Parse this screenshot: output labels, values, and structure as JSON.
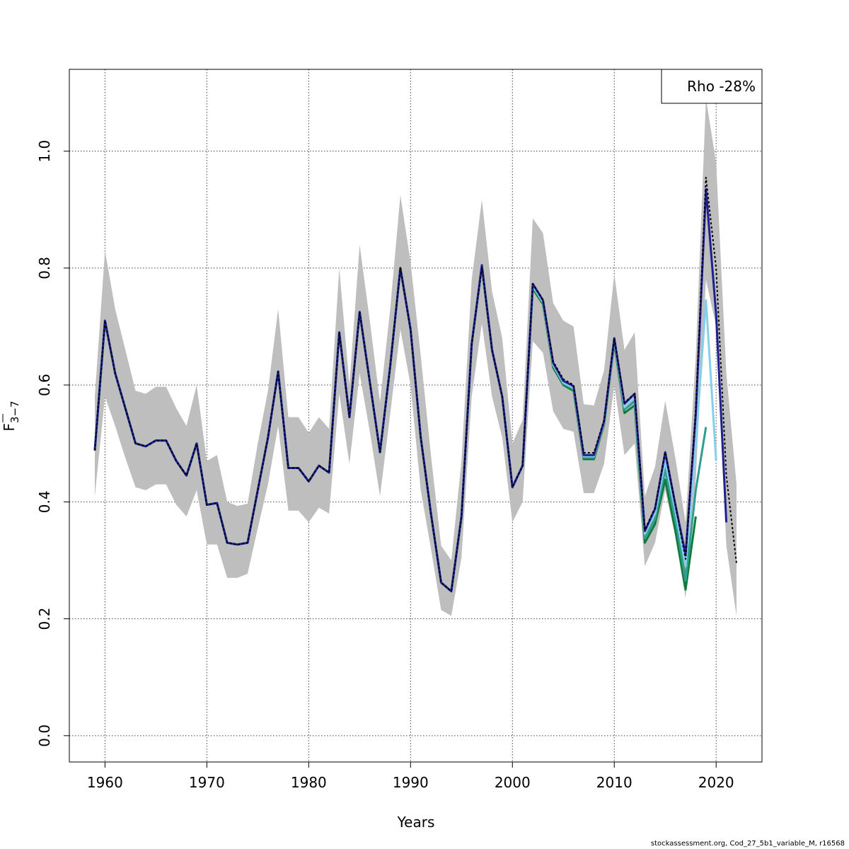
{
  "chart_data": {
    "type": "line",
    "xlabel": "Years",
    "ylabel_main": "F",
    "ylabel_sub": "3−7",
    "xlim": [
      1956.5,
      2024.5
    ],
    "ylim": [
      -0.045,
      1.14
    ],
    "xticks": [
      1960,
      1970,
      1980,
      1990,
      2000,
      2010,
      2020
    ],
    "yticks": [
      0.0,
      0.2,
      0.4,
      0.6,
      0.8,
      1.0
    ],
    "ytick_labels": [
      "0.0",
      "0.2",
      "0.4",
      "0.6",
      "0.8",
      "1.0"
    ],
    "grid": true,
    "legend": {
      "placement": "top-right",
      "text": "Rho -28%"
    },
    "confidence_band": {
      "color": "#bebebe",
      "x": [
        1959,
        1960,
        1961,
        1962,
        1963,
        1964,
        1965,
        1966,
        1967,
        1968,
        1969,
        1970,
        1971,
        1972,
        1973,
        1974,
        1975,
        1976,
        1977,
        1978,
        1979,
        1980,
        1981,
        1982,
        1983,
        1984,
        1985,
        1986,
        1987,
        1988,
        1989,
        1990,
        1991,
        1992,
        1993,
        1994,
        1995,
        1996,
        1997,
        1998,
        1999,
        2000,
        2001,
        2002,
        2003,
        2004,
        2005,
        2006,
        2007,
        2008,
        2009,
        2010,
        2011,
        2012,
        2013,
        2014,
        2015,
        2016,
        2017,
        2018,
        2019,
        2020,
        2021,
        2022
      ],
      "upper": [
        0.58,
        0.83,
        0.73,
        0.66,
        0.59,
        0.585,
        0.597,
        0.597,
        0.56,
        0.53,
        0.6,
        0.47,
        0.48,
        0.4,
        0.393,
        0.397,
        0.5,
        0.59,
        0.73,
        0.545,
        0.545,
        0.518,
        0.545,
        0.525,
        0.8,
        0.6,
        0.84,
        0.71,
        0.57,
        0.73,
        0.925,
        0.81,
        0.65,
        0.48,
        0.325,
        0.3,
        0.47,
        0.78,
        0.917,
        0.76,
        0.68,
        0.5,
        0.54,
        0.885,
        0.86,
        0.74,
        0.71,
        0.7,
        0.567,
        0.565,
        0.625,
        0.79,
        0.66,
        0.69,
        0.41,
        0.46,
        0.573,
        0.475,
        0.365,
        0.65,
        1.09,
        0.98,
        0.62,
        0.43
      ],
      "lower": [
        0.41,
        0.58,
        0.53,
        0.475,
        0.425,
        0.42,
        0.43,
        0.43,
        0.395,
        0.375,
        0.42,
        0.327,
        0.327,
        0.27,
        0.27,
        0.277,
        0.355,
        0.43,
        0.53,
        0.385,
        0.385,
        0.365,
        0.39,
        0.38,
        0.585,
        0.465,
        0.62,
        0.52,
        0.41,
        0.55,
        0.695,
        0.6,
        0.42,
        0.32,
        0.215,
        0.205,
        0.305,
        0.58,
        0.705,
        0.58,
        0.51,
        0.365,
        0.4,
        0.675,
        0.655,
        0.555,
        0.525,
        0.52,
        0.415,
        0.415,
        0.465,
        0.6,
        0.48,
        0.5,
        0.29,
        0.33,
        0.42,
        0.34,
        0.235,
        0.44,
        0.78,
        0.7,
        0.325,
        0.205
      ]
    },
    "series": [
      {
        "color": "#000000",
        "dashed": true,
        "x": [
          1959,
          1960,
          1961,
          1962,
          1963,
          1964,
          1965,
          1966,
          1967,
          1968,
          1969,
          1970,
          1971,
          1972,
          1973,
          1974,
          1975,
          1976,
          1977,
          1978,
          1979,
          1980,
          1981,
          1982,
          1983,
          1984,
          1985,
          1986,
          1987,
          1988,
          1989,
          1990,
          1991,
          1992,
          1993,
          1994,
          1995,
          1996,
          1997,
          1998,
          1999,
          2000,
          2001,
          2002,
          2003,
          2004,
          2005,
          2006,
          2007,
          2008,
          2009,
          2010,
          2011,
          2012,
          2013,
          2014,
          2015,
          2016,
          2017,
          2018,
          2019,
          2020,
          2021,
          2022
        ],
        "y": [
          0.488,
          0.71,
          0.62,
          0.56,
          0.5,
          0.495,
          0.505,
          0.505,
          0.47,
          0.445,
          0.5,
          0.395,
          0.398,
          0.33,
          0.327,
          0.33,
          0.42,
          0.51,
          0.623,
          0.458,
          0.458,
          0.435,
          0.462,
          0.45,
          0.69,
          0.545,
          0.725,
          0.605,
          0.485,
          0.632,
          0.8,
          0.695,
          0.51,
          0.38,
          0.262,
          0.247,
          0.375,
          0.67,
          0.8,
          0.66,
          0.58,
          0.425,
          0.462,
          0.773,
          0.745,
          0.64,
          0.61,
          0.6,
          0.484,
          0.484,
          0.54,
          0.68,
          0.57,
          0.585,
          0.352,
          0.39,
          0.485,
          0.395,
          0.302,
          0.56,
          0.955,
          0.8,
          0.445,
          0.295
        ]
      },
      {
        "color": "#1f1f8f",
        "dashed": false,
        "x": [
          1959,
          1960,
          1961,
          1962,
          1963,
          1964,
          1965,
          1966,
          1967,
          1968,
          1969,
          1970,
          1971,
          1972,
          1973,
          1974,
          1975,
          1976,
          1977,
          1978,
          1979,
          1980,
          1981,
          1982,
          1983,
          1984,
          1985,
          1986,
          1987,
          1988,
          1989,
          1990,
          1991,
          1992,
          1993,
          1994,
          1995,
          1996,
          1997,
          1998,
          1999,
          2000,
          2001,
          2002,
          2003,
          2004,
          2005,
          2006,
          2007,
          2008,
          2009,
          2010,
          2011,
          2012,
          2013,
          2014,
          2015,
          2016,
          2017,
          2018,
          2019,
          2020,
          2021
        ],
        "y": [
          0.488,
          0.71,
          0.62,
          0.56,
          0.5,
          0.495,
          0.505,
          0.505,
          0.47,
          0.445,
          0.5,
          0.395,
          0.398,
          0.33,
          0.327,
          0.33,
          0.42,
          0.51,
          0.623,
          0.458,
          0.458,
          0.435,
          0.462,
          0.45,
          0.69,
          0.545,
          0.725,
          0.605,
          0.485,
          0.632,
          0.8,
          0.695,
          0.51,
          0.38,
          0.262,
          0.247,
          0.375,
          0.67,
          0.805,
          0.66,
          0.58,
          0.425,
          0.462,
          0.773,
          0.745,
          0.638,
          0.607,
          0.598,
          0.48,
          0.48,
          0.538,
          0.68,
          0.568,
          0.585,
          0.35,
          0.388,
          0.485,
          0.395,
          0.31,
          0.55,
          0.935,
          0.72,
          0.365
        ]
      },
      {
        "color": "#87ceeb",
        "dashed": false,
        "x": [
          1959,
          1960,
          1961,
          1962,
          1963,
          1964,
          1965,
          1966,
          1967,
          1968,
          1969,
          1970,
          1971,
          1972,
          1973,
          1974,
          1975,
          1976,
          1977,
          1978,
          1979,
          1980,
          1981,
          1982,
          1983,
          1984,
          1985,
          1986,
          1987,
          1988,
          1989,
          1990,
          1991,
          1992,
          1993,
          1994,
          1995,
          1996,
          1997,
          1998,
          1999,
          2000,
          2001,
          2002,
          2003,
          2004,
          2005,
          2006,
          2007,
          2008,
          2009,
          2010,
          2011,
          2012,
          2013,
          2014,
          2015,
          2016,
          2017,
          2018,
          2019,
          2020
        ],
        "y": [
          0.488,
          0.71,
          0.62,
          0.56,
          0.5,
          0.495,
          0.505,
          0.505,
          0.47,
          0.445,
          0.5,
          0.395,
          0.398,
          0.33,
          0.327,
          0.33,
          0.42,
          0.51,
          0.623,
          0.458,
          0.458,
          0.435,
          0.462,
          0.45,
          0.69,
          0.545,
          0.725,
          0.605,
          0.485,
          0.632,
          0.8,
          0.695,
          0.51,
          0.38,
          0.262,
          0.247,
          0.375,
          0.67,
          0.8,
          0.66,
          0.58,
          0.425,
          0.462,
          0.77,
          0.742,
          0.635,
          0.604,
          0.595,
          0.478,
          0.478,
          0.536,
          0.678,
          0.562,
          0.578,
          0.345,
          0.38,
          0.47,
          0.385,
          0.29,
          0.5,
          0.745,
          0.47
        ]
      },
      {
        "color": "#2e9e8e",
        "dashed": false,
        "x": [
          1959,
          1960,
          1961,
          1962,
          1963,
          1964,
          1965,
          1966,
          1967,
          1968,
          1969,
          1970,
          1971,
          1972,
          1973,
          1974,
          1975,
          1976,
          1977,
          1978,
          1979,
          1980,
          1981,
          1982,
          1983,
          1984,
          1985,
          1986,
          1987,
          1988,
          1989,
          1990,
          1991,
          1992,
          1993,
          1994,
          1995,
          1996,
          1997,
          1998,
          1999,
          2000,
          2001,
          2002,
          2003,
          2004,
          2005,
          2006,
          2007,
          2008,
          2009,
          2010,
          2011,
          2012,
          2013,
          2014,
          2015,
          2016,
          2017,
          2018,
          2019
        ],
        "y": [
          0.488,
          0.71,
          0.62,
          0.56,
          0.5,
          0.495,
          0.505,
          0.505,
          0.47,
          0.445,
          0.5,
          0.395,
          0.398,
          0.33,
          0.327,
          0.33,
          0.42,
          0.51,
          0.623,
          0.458,
          0.458,
          0.435,
          0.462,
          0.45,
          0.69,
          0.545,
          0.725,
          0.605,
          0.485,
          0.632,
          0.8,
          0.695,
          0.51,
          0.38,
          0.262,
          0.247,
          0.375,
          0.67,
          0.8,
          0.66,
          0.58,
          0.425,
          0.462,
          0.768,
          0.74,
          0.633,
          0.602,
          0.593,
          0.476,
          0.476,
          0.535,
          0.675,
          0.558,
          0.572,
          0.338,
          0.37,
          0.455,
          0.37,
          0.265,
          0.42,
          0.528
        ]
      },
      {
        "color": "#0f7a3a",
        "dashed": false,
        "x": [
          1959,
          1960,
          1961,
          1962,
          1963,
          1964,
          1965,
          1966,
          1967,
          1968,
          1969,
          1970,
          1971,
          1972,
          1973,
          1974,
          1975,
          1976,
          1977,
          1978,
          1979,
          1980,
          1981,
          1982,
          1983,
          1984,
          1985,
          1986,
          1987,
          1988,
          1989,
          1990,
          1991,
          1992,
          1993,
          1994,
          1995,
          1996,
          1997,
          1998,
          1999,
          2000,
          2001,
          2002,
          2003,
          2004,
          2005,
          2006,
          2007,
          2008,
          2009,
          2010,
          2011,
          2012,
          2013,
          2014,
          2015,
          2016,
          2017,
          2018
        ],
        "y": [
          0.488,
          0.71,
          0.62,
          0.56,
          0.5,
          0.495,
          0.505,
          0.505,
          0.47,
          0.445,
          0.5,
          0.395,
          0.398,
          0.33,
          0.327,
          0.33,
          0.42,
          0.51,
          0.623,
          0.458,
          0.458,
          0.435,
          0.462,
          0.45,
          0.69,
          0.545,
          0.725,
          0.605,
          0.485,
          0.632,
          0.8,
          0.695,
          0.51,
          0.38,
          0.262,
          0.247,
          0.375,
          0.67,
          0.8,
          0.66,
          0.58,
          0.425,
          0.462,
          0.765,
          0.738,
          0.63,
          0.6,
          0.59,
          0.473,
          0.473,
          0.533,
          0.672,
          0.552,
          0.565,
          0.33,
          0.362,
          0.438,
          0.35,
          0.25,
          0.375
        ]
      },
      {
        "color": "#8a9a2a",
        "dashed": false,
        "x": [
          1959,
          1960,
          1961,
          1962,
          1963,
          1964,
          1965,
          1966,
          1967,
          1968,
          1969,
          1970,
          1971,
          1972,
          1973,
          1974,
          1975,
          1976,
          1977,
          1978,
          1979,
          1980,
          1981,
          1982,
          1983,
          1984,
          1985,
          1986,
          1987,
          1988,
          1989,
          1990,
          1991,
          1992,
          1993,
          1994,
          1995,
          1996,
          1997,
          1998,
          1999,
          2000,
          2001,
          2002,
          2003,
          2004,
          2005,
          2006,
          2007,
          2008,
          2009,
          2010,
          2011,
          2012,
          2013,
          2014,
          2015,
          2016,
          2017
        ],
        "y": [
          0.488,
          0.71,
          0.62,
          0.56,
          0.5,
          0.495,
          0.505,
          0.505,
          0.47,
          0.445,
          0.5,
          0.395,
          0.398,
          0.33,
          0.327,
          0.33,
          0.42,
          0.51,
          0.623,
          0.458,
          0.458,
          0.435,
          0.462,
          0.45,
          0.69,
          0.545,
          0.725,
          0.605,
          0.485,
          0.632,
          0.8,
          0.695,
          0.51,
          0.38,
          0.262,
          0.247,
          0.375,
          0.67,
          0.8,
          0.66,
          0.58,
          0.425,
          0.462,
          0.765,
          0.738,
          0.63,
          0.6,
          0.59,
          0.473,
          0.473,
          0.533,
          0.678,
          0.56,
          0.575,
          0.34,
          0.375,
          0.46,
          0.375,
          0.275
        ]
      }
    ]
  },
  "footer": "stockassessment.org, Cod_27_5b1_variable_M, r16568"
}
